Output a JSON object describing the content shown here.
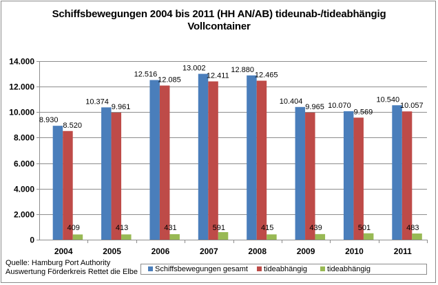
{
  "chart_data": {
    "type": "bar",
    "title_lines": [
      "Schiffsbewegungen 2004 bis 2011 (HH AN/AB) tideunab-/tideabhängig",
      "Vollcontainer"
    ],
    "categories": [
      "2004",
      "2005",
      "2006",
      "2007",
      "2008",
      "2009",
      "2010",
      "2011"
    ],
    "series": [
      {
        "name": "Schiffsbewegungen gesamt",
        "color": "#4a7ebb",
        "values": [
          8930,
          10374,
          12516,
          13002,
          12880,
          10404,
          10070,
          10540
        ],
        "labels": [
          "8.930",
          "10.374",
          "12.516",
          "13.002",
          "12.880",
          "10.404",
          "10.070",
          "10.540"
        ]
      },
      {
        "name": "tideabhängig",
        "color": "#be4b48",
        "values": [
          8520,
          9961,
          12085,
          12411,
          12465,
          9965,
          9569,
          10057
        ],
        "labels": [
          "8.520",
          "9.961",
          "12.085",
          "12.411",
          "12.465",
          "9.965",
          "9.569",
          "10.057"
        ]
      },
      {
        "name": "tideabhängig",
        "color": "#98b954",
        "values": [
          409,
          413,
          431,
          591,
          415,
          439,
          501,
          483
        ],
        "labels": [
          "409",
          "413",
          "431",
          "591",
          "415",
          "439",
          "501",
          "483"
        ]
      }
    ],
    "ylim": [
      0,
      14000
    ],
    "yticks": [
      0,
      2000,
      4000,
      6000,
      8000,
      10000,
      12000,
      14000
    ],
    "ytick_labels": [
      "0",
      "2.000",
      "4.000",
      "6.000",
      "8.000",
      "10.000",
      "12.000",
      "14.000"
    ],
    "grid": "horizontal",
    "legend": "bottom",
    "xlabel": "",
    "ylabel": ""
  },
  "source_lines": [
    "Quelle: Hamburg Port Authority",
    "Auswertung Förderkreis Rettet die Elbe"
  ]
}
